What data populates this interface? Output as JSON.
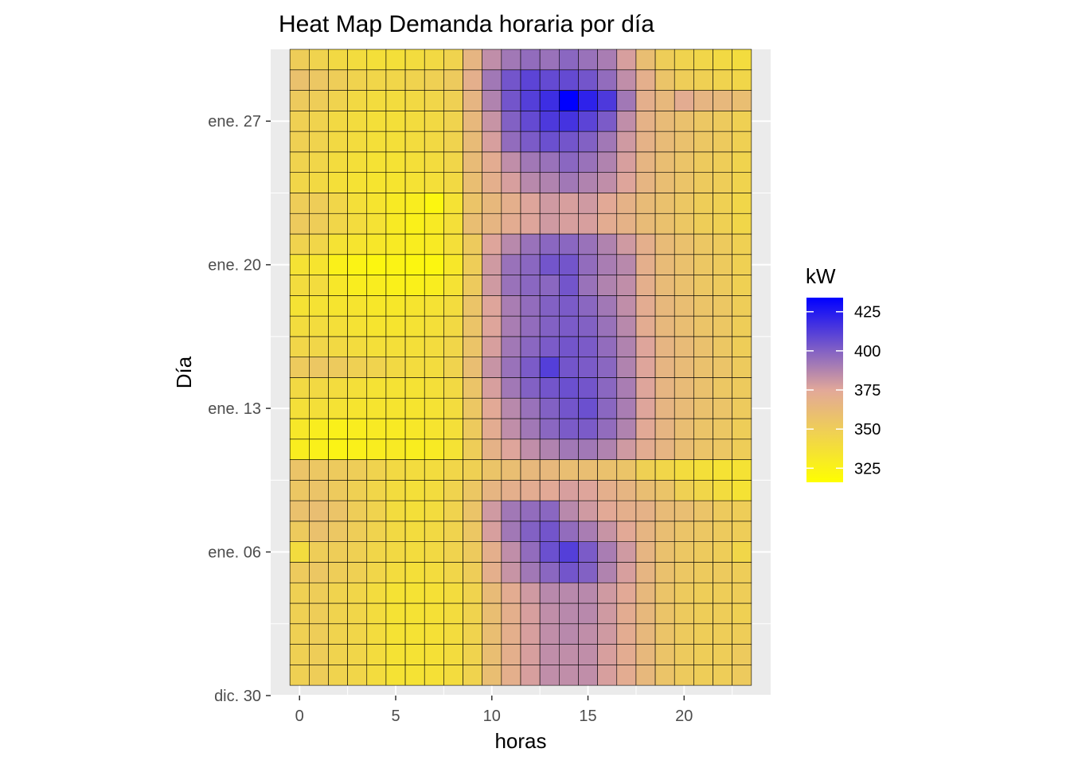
{
  "chart_data": {
    "type": "heatmap",
    "title": "Heat Map Demanda horaria por día",
    "xlabel": "horas",
    "ylabel": "Día",
    "x_ticks": [
      0,
      5,
      10,
      15,
      20
    ],
    "x_range": [
      -1.5,
      24.5
    ],
    "y_ticks": [
      {
        "label": "dic. 30",
        "day": 0
      },
      {
        "label": "ene. 06",
        "day": 7
      },
      {
        "label": "ene. 13",
        "day": 14
      },
      {
        "label": "ene. 20",
        "day": 21
      },
      {
        "label": "ene. 27",
        "day": 28
      }
    ],
    "y_range": [
      0,
      31.5
    ],
    "day_offset": 1,
    "hours": 24,
    "grid": true,
    "legend": {
      "title": "kW",
      "position": "right",
      "breaks": [
        325,
        350,
        375,
        400,
        425
      ],
      "min": 316,
      "max": 434,
      "colors": [
        "#ffff00",
        "#e2a899",
        "#0000ff"
      ]
    },
    "values": [
      [
        348,
        350,
        346,
        344,
        340,
        336,
        336,
        337,
        340,
        346,
        360,
        370,
        378,
        384,
        384,
        384,
        378,
        372,
        364,
        356,
        352,
        350,
        350,
        352
      ],
      [
        348,
        350,
        346,
        344,
        340,
        336,
        336,
        337,
        340,
        346,
        360,
        370,
        378,
        384,
        384,
        384,
        378,
        372,
        364,
        356,
        352,
        350,
        350,
        352
      ],
      [
        348,
        350,
        346,
        344,
        340,
        336,
        336,
        337,
        340,
        346,
        360,
        370,
        378,
        384,
        386,
        384,
        380,
        372,
        364,
        356,
        352,
        350,
        350,
        350
      ],
      [
        348,
        350,
        346,
        344,
        340,
        336,
        336,
        337,
        340,
        346,
        360,
        370,
        378,
        384,
        386,
        386,
        380,
        372,
        364,
        356,
        352,
        350,
        350,
        348
      ],
      [
        348,
        350,
        346,
        344,
        340,
        336,
        336,
        337,
        340,
        346,
        362,
        372,
        380,
        386,
        386,
        386,
        380,
        374,
        364,
        356,
        352,
        350,
        350,
        350
      ],
      [
        352,
        354,
        350,
        348,
        344,
        340,
        338,
        340,
        344,
        350,
        370,
        382,
        392,
        398,
        404,
        400,
        388,
        378,
        366,
        358,
        354,
        352,
        352,
        350
      ],
      [
        340,
        350,
        350,
        348,
        344,
        342,
        340,
        342,
        346,
        352,
        370,
        384,
        396,
        406,
        412,
        402,
        390,
        380,
        366,
        358,
        354,
        352,
        350,
        344
      ],
      [
        352,
        358,
        354,
        350,
        346,
        342,
        340,
        342,
        346,
        354,
        378,
        392,
        400,
        404,
        396,
        390,
        382,
        374,
        366,
        360,
        356,
        354,
        352,
        350
      ],
      [
        358,
        360,
        356,
        350,
        346,
        340,
        338,
        340,
        346,
        356,
        380,
        392,
        396,
        398,
        386,
        380,
        374,
        370,
        368,
        362,
        360,
        356,
        352,
        350
      ],
      [
        354,
        356,
        352,
        348,
        344,
        340,
        338,
        340,
        346,
        354,
        366,
        370,
        372,
        374,
        378,
        376,
        370,
        366,
        360,
        356,
        348,
        344,
        340,
        336
      ],
      [
        356,
        354,
        352,
        350,
        346,
        342,
        340,
        340,
        344,
        348,
        356,
        360,
        364,
        364,
        360,
        360,
        358,
        356,
        348,
        344,
        340,
        338,
        336,
        336
      ],
      [
        328,
        326,
        324,
        326,
        328,
        330,
        328,
        330,
        336,
        350,
        368,
        376,
        384,
        388,
        392,
        392,
        388,
        380,
        372,
        366,
        360,
        356,
        354,
        350
      ],
      [
        332,
        328,
        326,
        328,
        330,
        330,
        332,
        334,
        338,
        352,
        372,
        384,
        392,
        398,
        402,
        402,
        396,
        388,
        374,
        366,
        360,
        356,
        354,
        350
      ],
      [
        338,
        338,
        336,
        334,
        334,
        334,
        334,
        336,
        340,
        354,
        374,
        386,
        394,
        400,
        404,
        406,
        398,
        390,
        376,
        366,
        362,
        358,
        356,
        352
      ],
      [
        342,
        342,
        340,
        338,
        336,
        336,
        336,
        338,
        342,
        356,
        378,
        392,
        400,
        404,
        406,
        404,
        398,
        390,
        376,
        366,
        362,
        358,
        354,
        352
      ],
      [
        352,
        354,
        352,
        348,
        346,
        342,
        340,
        340,
        346,
        360,
        382,
        394,
        402,
        412,
        404,
        402,
        398,
        388,
        376,
        366,
        362,
        358,
        356,
        352
      ],
      [
        344,
        344,
        342,
        340,
        338,
        338,
        338,
        340,
        344,
        356,
        378,
        392,
        398,
        402,
        404,
        402,
        396,
        388,
        376,
        366,
        362,
        358,
        354,
        350
      ],
      [
        340,
        340,
        338,
        336,
        334,
        334,
        336,
        338,
        342,
        356,
        376,
        390,
        396,
        400,
        402,
        400,
        394,
        386,
        372,
        364,
        360,
        356,
        354,
        350
      ],
      [
        336,
        336,
        334,
        334,
        332,
        332,
        334,
        336,
        340,
        356,
        376,
        390,
        396,
        400,
        402,
        398,
        392,
        384,
        372,
        364,
        360,
        356,
        354,
        350
      ],
      [
        340,
        340,
        332,
        328,
        328,
        326,
        326,
        328,
        336,
        352,
        380,
        394,
        398,
        398,
        404,
        394,
        388,
        384,
        370,
        362,
        358,
        354,
        352,
        348
      ],
      [
        336,
        334,
        326,
        324,
        322,
        324,
        322,
        322,
        332,
        350,
        380,
        394,
        398,
        404,
        404,
        396,
        390,
        386,
        370,
        362,
        358,
        354,
        352,
        348
      ],
      [
        346,
        344,
        336,
        334,
        332,
        330,
        328,
        330,
        338,
        352,
        376,
        386,
        394,
        398,
        398,
        394,
        388,
        380,
        370,
        362,
        358,
        354,
        352,
        348
      ],
      [
        352,
        350,
        344,
        340,
        336,
        330,
        326,
        330,
        338,
        360,
        366,
        372,
        376,
        380,
        378,
        378,
        372,
        368,
        362,
        358,
        354,
        350,
        348,
        344
      ],
      [
        350,
        350,
        344,
        338,
        334,
        330,
        328,
        322,
        336,
        356,
        364,
        370,
        376,
        380,
        378,
        380,
        374,
        368,
        362,
        358,
        354,
        350,
        348,
        344
      ],
      [
        344,
        342,
        338,
        336,
        334,
        334,
        336,
        338,
        342,
        360,
        370,
        378,
        386,
        388,
        392,
        388,
        384,
        376,
        366,
        360,
        356,
        352,
        350,
        346
      ],
      [
        346,
        344,
        340,
        338,
        336,
        336,
        338,
        340,
        344,
        362,
        372,
        384,
        392,
        394,
        398,
        394,
        388,
        378,
        366,
        360,
        356,
        352,
        350,
        346
      ],
      [
        348,
        346,
        342,
        340,
        338,
        338,
        340,
        342,
        346,
        362,
        378,
        396,
        402,
        406,
        404,
        400,
        392,
        380,
        368,
        362,
        358,
        354,
        352,
        348
      ],
      [
        348,
        346,
        342,
        340,
        338,
        338,
        340,
        342,
        346,
        364,
        382,
        400,
        408,
        414,
        416,
        410,
        402,
        384,
        368,
        362,
        358,
        354,
        352,
        348
      ],
      [
        352,
        350,
        346,
        342,
        340,
        340,
        342,
        344,
        348,
        366,
        388,
        404,
        412,
        418,
        434,
        422,
        414,
        392,
        370,
        364,
        372,
        366,
        364,
        360
      ],
      [
        358,
        354,
        350,
        346,
        344,
        344,
        346,
        348,
        352,
        370,
        392,
        404,
        410,
        408,
        408,
        404,
        396,
        384,
        370,
        356,
        350,
        348,
        346,
        344
      ],
      [
        350,
        346,
        342,
        340,
        338,
        338,
        340,
        342,
        346,
        366,
        384,
        392,
        396,
        394,
        398,
        394,
        390,
        378,
        360,
        350,
        346,
        344,
        342,
        340
      ]
    ]
  }
}
